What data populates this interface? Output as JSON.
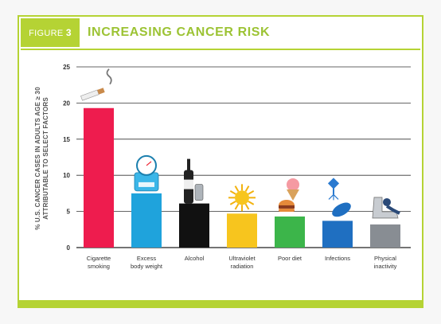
{
  "header": {
    "figure_prefix": "FIGURE",
    "figure_number": "3",
    "title": "INCREASING CANCER RISK"
  },
  "chart_data": {
    "type": "bar",
    "title": "INCREASING CANCER RISK",
    "ylabel_line1": "% U.S. CANCER CASES IN ADULTS AGE ≥ 30",
    "ylabel_line2": "ATTRIBUTABLE TO SELECT FACTORS",
    "xlabel": "",
    "ylim": [
      0,
      25
    ],
    "yticks": [
      0,
      5,
      10,
      15,
      20,
      25
    ],
    "grid": true,
    "categories": [
      [
        "Cigarette",
        "smoking"
      ],
      [
        "Excess",
        "body weight"
      ],
      [
        "Alcohol"
      ],
      [
        "Ultraviolet",
        "radiation"
      ],
      [
        "Poor diet"
      ],
      [
        "Infections"
      ],
      [
        "Physical",
        "inactivity"
      ]
    ],
    "values": [
      19.3,
      7.5,
      6.1,
      4.7,
      4.3,
      3.7,
      3.2
    ],
    "colors": [
      "#ee1c4e",
      "#1fa3dc",
      "#111111",
      "#f7c51e",
      "#3cb54a",
      "#1f6fc1",
      "#888d93"
    ],
    "icons": [
      "cigarette-icon",
      "scale-icon",
      "alcohol-bottle-icon",
      "sun-icon",
      "burger-icon",
      "virus-icon",
      "recliner-icon"
    ]
  }
}
